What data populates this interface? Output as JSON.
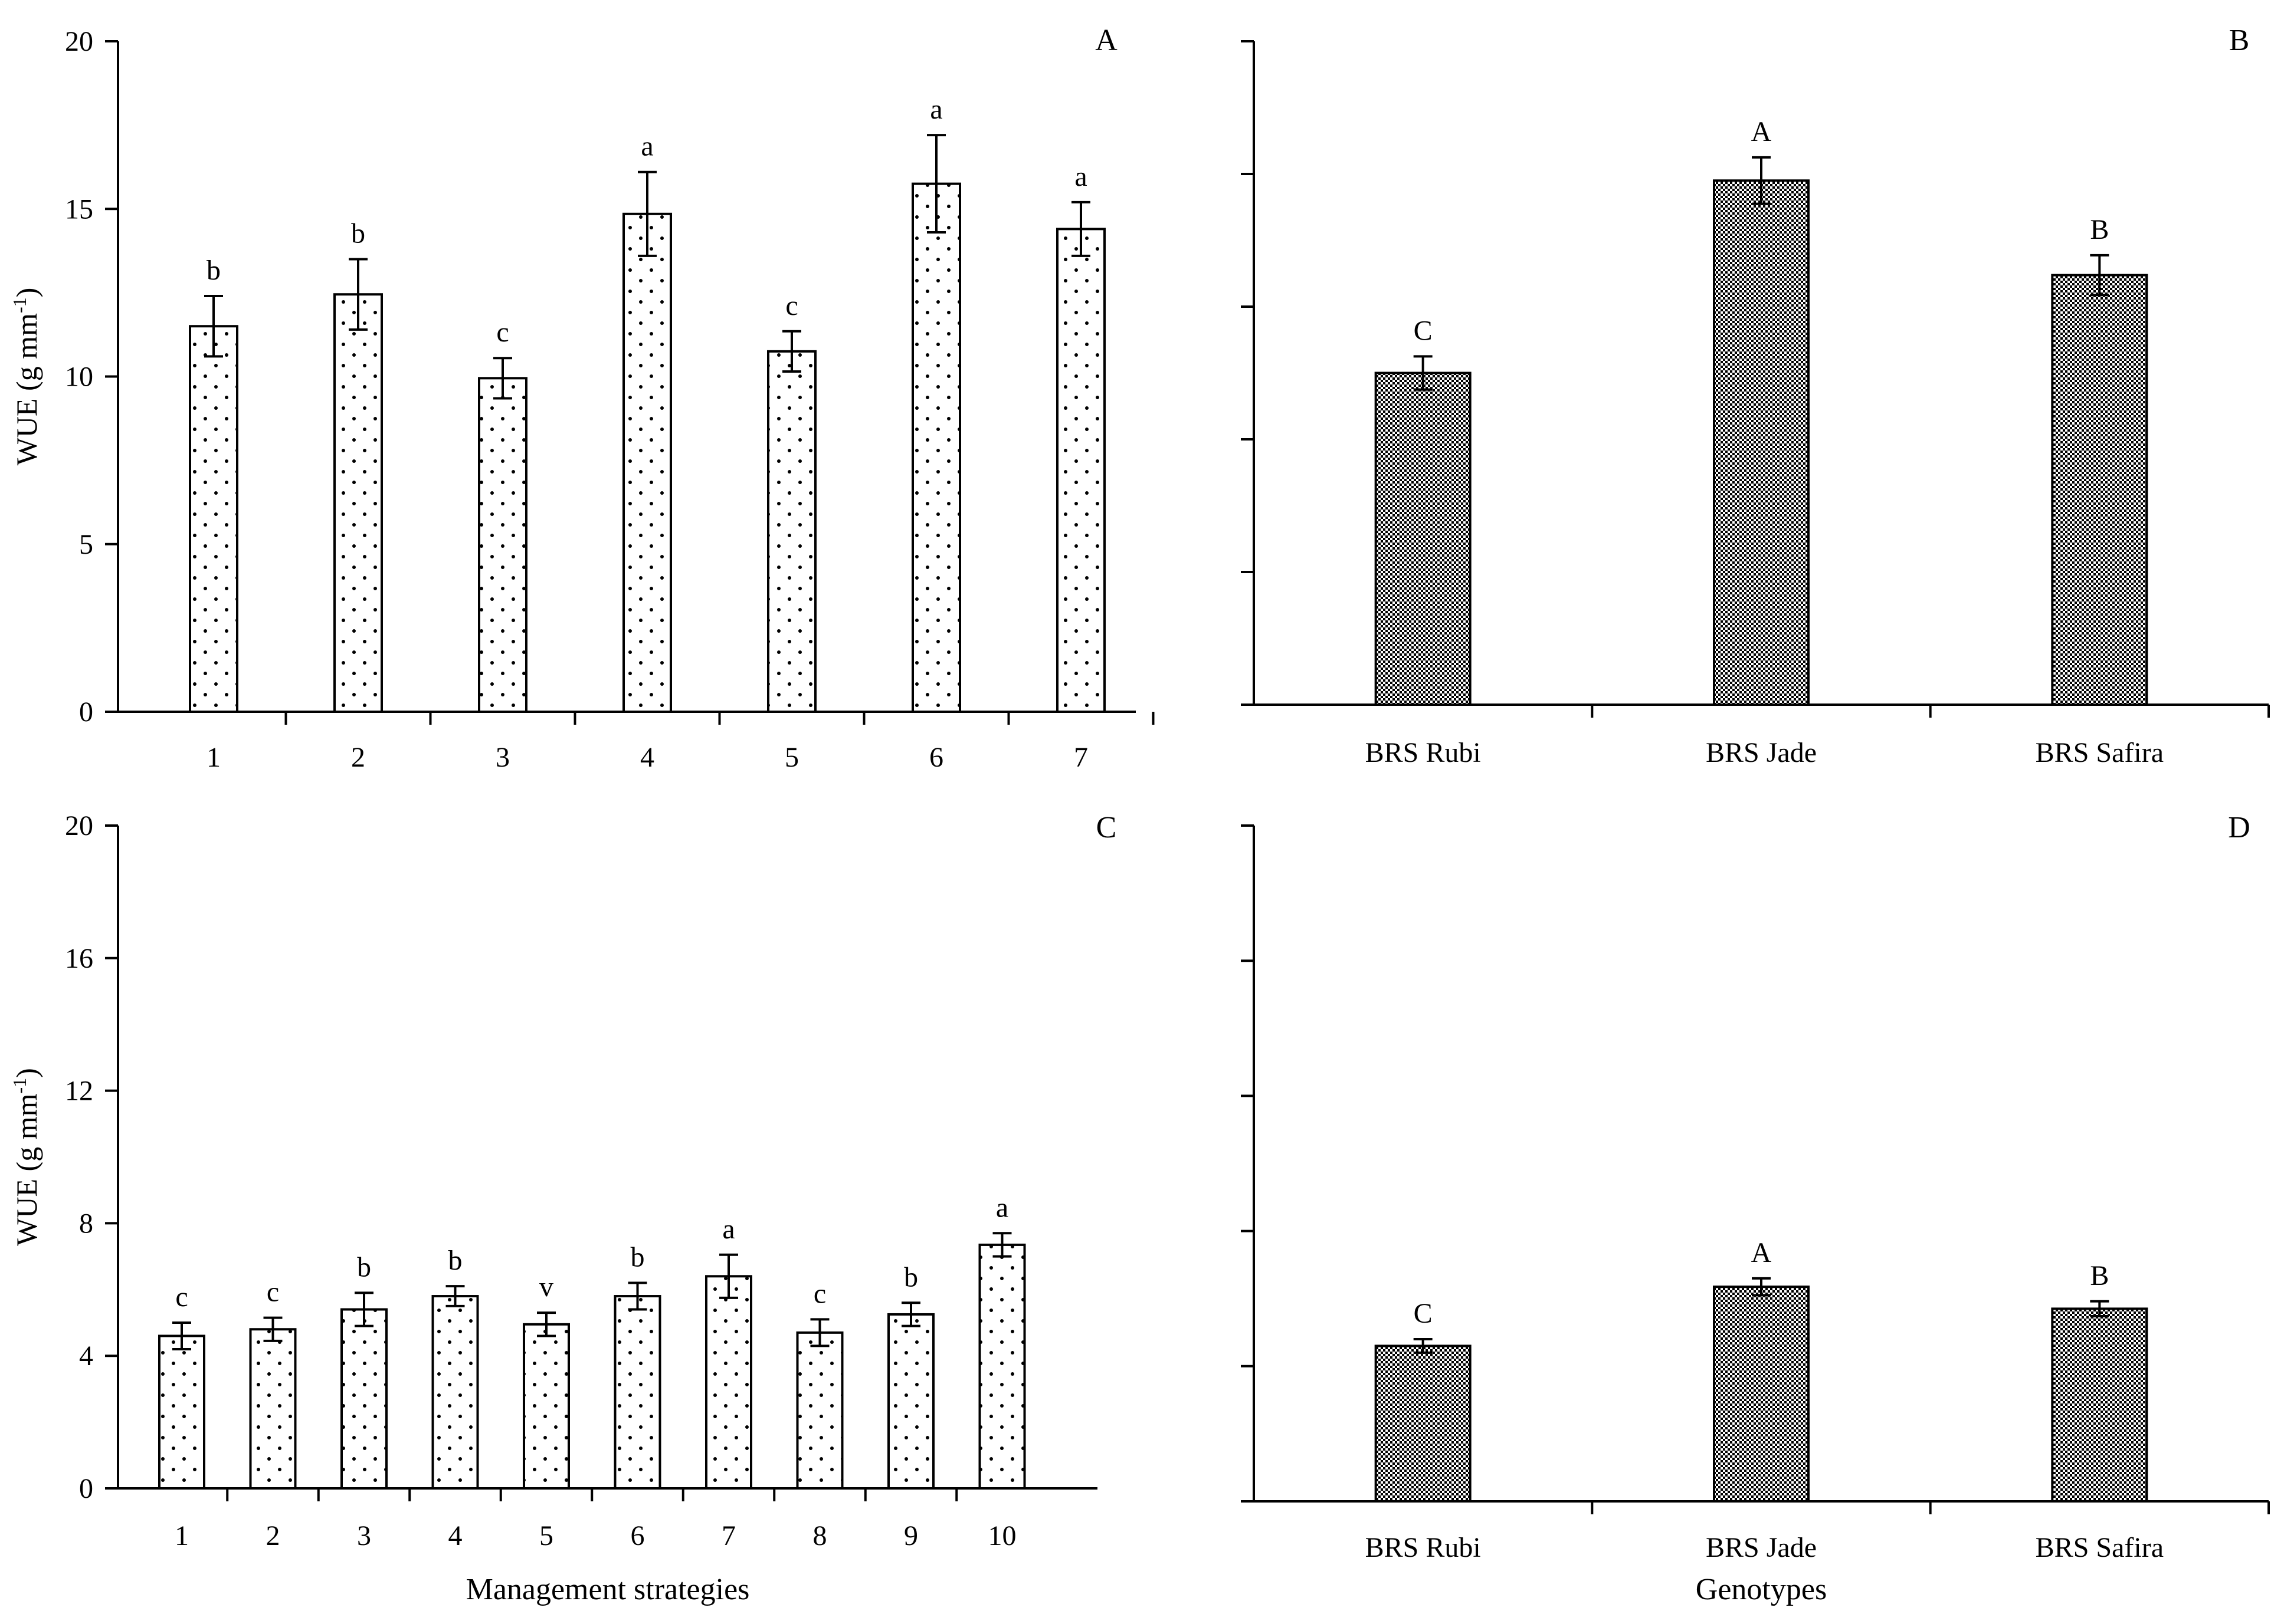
{
  "colors": {
    "axis": "#000000",
    "bar_stroke": "#000000",
    "bar_fill": "#ffffff",
    "dots": "#000000",
    "check": "#000000"
  },
  "chart_data": [
    {
      "panel": "A",
      "type": "bar",
      "pattern": "dots",
      "categories": [
        "1",
        "2",
        "3",
        "4",
        "5",
        "6",
        "7"
      ],
      "values": [
        11.5,
        12.45,
        9.95,
        14.85,
        10.75,
        15.75,
        14.4
      ],
      "errors": [
        0.9,
        1.05,
        0.6,
        1.25,
        0.6,
        1.45,
        0.8
      ],
      "letters": [
        "b",
        "b",
        "c",
        "a",
        "c",
        "a",
        "a"
      ],
      "ylim": [
        0,
        20
      ],
      "yticks": [
        0,
        5,
        10,
        15,
        20
      ],
      "ytick_labels": [
        "0",
        "5",
        "10",
        "15",
        "20"
      ],
      "ylabel": "WUE (g mm",
      "ylabel_sup": "-1",
      "ylabel_close": ")",
      "xlabel": ""
    },
    {
      "panel": "B",
      "type": "bar",
      "pattern": "checker",
      "categories": [
        "BRS Rubi",
        "BRS Jade",
        "BRS Safira"
      ],
      "values": [
        10.0,
        15.8,
        12.95
      ],
      "errors": [
        0.5,
        0.7,
        0.6
      ],
      "letters": [
        "C",
        "A",
        "B"
      ],
      "ylim": [
        0,
        20
      ],
      "yticks": [
        0,
        4,
        8,
        12,
        16,
        20
      ],
      "ytick_labels": [],
      "ylabel": "",
      "xlabel": ""
    },
    {
      "panel": "C",
      "type": "bar",
      "pattern": "dots",
      "categories": [
        "1",
        "2",
        "3",
        "4",
        "5",
        "6",
        "7",
        "8",
        "9",
        "10"
      ],
      "values": [
        4.6,
        4.8,
        5.4,
        5.8,
        4.95,
        5.8,
        6.4,
        4.7,
        5.25,
        7.35
      ],
      "errors": [
        0.4,
        0.35,
        0.5,
        0.3,
        0.35,
        0.4,
        0.65,
        0.4,
        0.35,
        0.35
      ],
      "letters": [
        "c",
        "c",
        "b",
        "b",
        "v",
        "b",
        "a",
        "c",
        "b",
        "a"
      ],
      "ylim": [
        0,
        20
      ],
      "yticks": [
        0,
        4,
        8,
        12,
        16,
        20
      ],
      "ytick_labels": [
        "0",
        "4",
        "8",
        "12",
        "16",
        "20"
      ],
      "ylabel": "WUE (g mm",
      "ylabel_sup": "-1",
      "ylabel_close": ")",
      "xlabel": "Management strategies"
    },
    {
      "panel": "D",
      "type": "bar",
      "pattern": "checker",
      "categories": [
        "BRS Rubi",
        "BRS Jade",
        "BRS Safira"
      ],
      "values": [
        4.6,
        6.35,
        5.7
      ],
      "errors": [
        0.2,
        0.25,
        0.22
      ],
      "letters": [
        "C",
        "A",
        "B"
      ],
      "ylim": [
        0,
        20
      ],
      "yticks": [
        0,
        4,
        8,
        12,
        16,
        20
      ],
      "ytick_labels": [],
      "ylabel": "",
      "xlabel": "Genotypes"
    }
  ]
}
